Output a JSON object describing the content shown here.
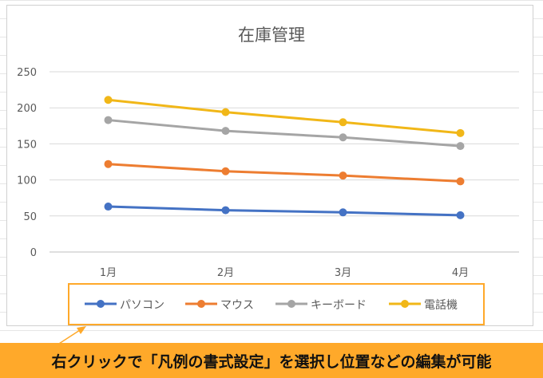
{
  "chart_data": {
    "type": "line",
    "title": "在庫管理",
    "categories": [
      "1月",
      "2月",
      "3月",
      "4月"
    ],
    "ylim": [
      0,
      250
    ],
    "yticks": [
      "0",
      "50",
      "100",
      "150",
      "200",
      "250"
    ],
    "grid": true,
    "legend_position": "bottom",
    "series": [
      {
        "name": "パソコン",
        "values": [
          63,
          58,
          55,
          51
        ],
        "color": "#4472c4"
      },
      {
        "name": "マウス",
        "values": [
          122,
          112,
          106,
          98
        ],
        "color": "#ed7d31"
      },
      {
        "name": "キーボード",
        "values": [
          183,
          168,
          159,
          147
        ],
        "color": "#a5a5a5"
      },
      {
        "name": "電話機",
        "values": [
          211,
          194,
          180,
          165
        ],
        "color": "#f1b718"
      }
    ]
  },
  "caption": "右クリックで「凡例の書式設定」を選択し位置などの編集が可能",
  "colors": {
    "highlight": "#ffa92a",
    "arrow": "#ffa92a"
  }
}
